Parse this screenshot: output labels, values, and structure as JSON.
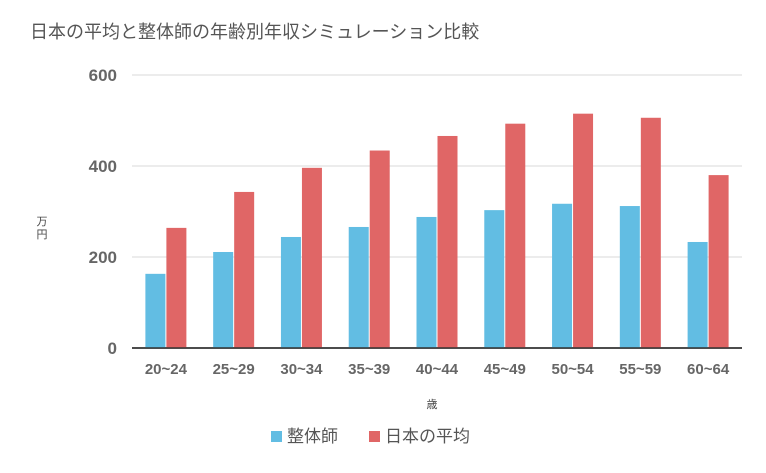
{
  "chart_data": {
    "type": "bar",
    "title": "日本の平均と整体師の年齢別年収シミュレーション比較",
    "xlabel": "歳",
    "ylabel": "万円",
    "categories": [
      "20~24",
      "25~29",
      "30~34",
      "35~39",
      "40~44",
      "45~49",
      "50~54",
      "55~59",
      "60~64"
    ],
    "series": [
      {
        "name": "整体師",
        "color": "#62bde3",
        "values": [
          163,
          211,
          244,
          266,
          288,
          303,
          317,
          312,
          233
        ]
      },
      {
        "name": "日本の平均",
        "color": "#e06666",
        "values": [
          264,
          343,
          396,
          434,
          466,
          493,
          515,
          506,
          380
        ]
      }
    ],
    "ylim": [
      0,
      600
    ],
    "yticks": [
      0,
      200,
      400,
      600
    ],
    "grid": true,
    "legend_position": "bottom"
  }
}
